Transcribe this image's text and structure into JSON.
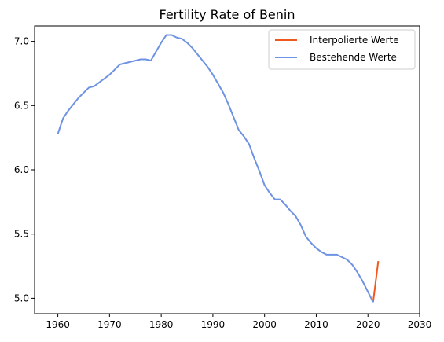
{
  "chart_data": {
    "type": "line",
    "title": "Fertility Rate of Benin",
    "xlabel": "",
    "ylabel": "",
    "xlim": [
      1955.5,
      2030
    ],
    "ylim": [
      4.88,
      7.12
    ],
    "x_ticks": [
      1960,
      1970,
      1980,
      1990,
      2000,
      2010,
      2020,
      2030
    ],
    "y_ticks": [
      5.0,
      5.5,
      6.0,
      6.5,
      7.0
    ],
    "x_tick_labels": [
      "1960",
      "1970",
      "1980",
      "1990",
      "2000",
      "2010",
      "2020",
      "2030"
    ],
    "y_tick_labels": [
      "5.0",
      "5.5",
      "6.0",
      "6.5",
      "7.0"
    ],
    "legend_position": "top-right",
    "grid": false,
    "series": [
      {
        "name": "Interpolierte Werte",
        "color": "#f05a1e",
        "x": [
          2021,
          2022
        ],
        "y": [
          4.97,
          5.29
        ]
      },
      {
        "name": "Bestehende Werte",
        "color": "#6f93e3",
        "x": [
          1960,
          1961,
          1962,
          1963,
          1964,
          1965,
          1966,
          1967,
          1968,
          1969,
          1970,
          1971,
          1972,
          1973,
          1974,
          1975,
          1976,
          1977,
          1978,
          1979,
          1980,
          1981,
          1982,
          1983,
          1984,
          1985,
          1986,
          1987,
          1988,
          1989,
          1990,
          1991,
          1992,
          1993,
          1994,
          1995,
          1996,
          1997,
          1998,
          1999,
          2000,
          2001,
          2002,
          2003,
          2004,
          2005,
          2006,
          2007,
          2008,
          2009,
          2010,
          2011,
          2012,
          2013,
          2014,
          2015,
          2016,
          2017,
          2018,
          2019,
          2020,
          2021
        ],
        "y": [
          6.28,
          6.4,
          6.46,
          6.51,
          6.56,
          6.6,
          6.64,
          6.65,
          6.68,
          6.71,
          6.74,
          6.78,
          6.82,
          6.83,
          6.84,
          6.85,
          6.86,
          6.86,
          6.85,
          6.92,
          6.99,
          7.05,
          7.05,
          7.03,
          7.02,
          6.99,
          6.95,
          6.9,
          6.85,
          6.8,
          6.74,
          6.67,
          6.6,
          6.51,
          6.41,
          6.31,
          6.26,
          6.2,
          6.09,
          5.99,
          5.88,
          5.82,
          5.77,
          5.77,
          5.73,
          5.68,
          5.64,
          5.57,
          5.48,
          5.43,
          5.39,
          5.36,
          5.34,
          5.34,
          5.34,
          5.32,
          5.3,
          5.26,
          5.2,
          5.13,
          5.05,
          4.97
        ]
      }
    ]
  }
}
